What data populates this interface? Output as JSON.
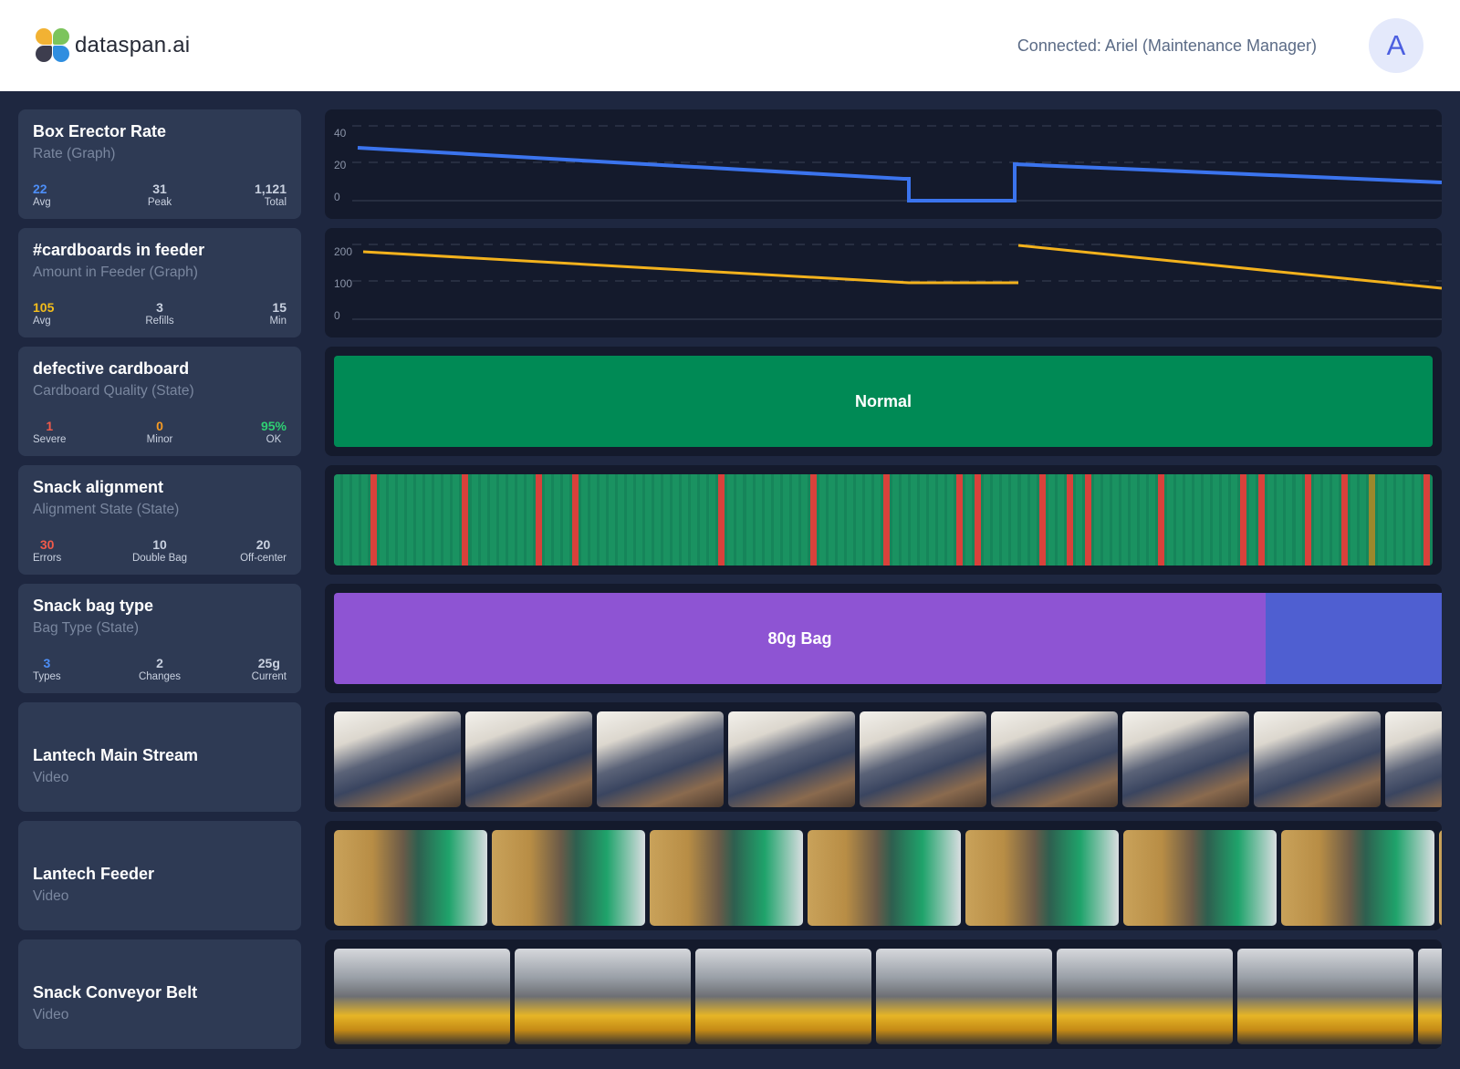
{
  "header": {
    "brand": "dataspan.ai",
    "connection": "Connected: Ariel (Maintenance Manager)",
    "avatar_letter": "A"
  },
  "cards": [
    {
      "title": "Box Erector Rate",
      "subtitle": "Rate (Graph)",
      "stats": [
        {
          "value": "22",
          "label": "Avg",
          "color": "#4d8ef7"
        },
        {
          "value": "31",
          "label": "Peak",
          "color": "#ffffff"
        },
        {
          "value": "1,121",
          "label": "Total",
          "color": "#ffffff"
        }
      ]
    },
    {
      "title": "#cardboards in feeder",
      "subtitle": "Amount in Feeder (Graph)",
      "stats": [
        {
          "value": "105",
          "label": "Avg",
          "color": "#f3bd1b"
        },
        {
          "value": "3",
          "label": "Refills",
          "color": "#ffffff"
        },
        {
          "value": "15",
          "label": "Min",
          "color": "#ffffff"
        }
      ]
    },
    {
      "title": "defective cardboard",
      "subtitle": "Cardboard Quality (State)",
      "stats": [
        {
          "value": "1",
          "label": "Severe",
          "color": "#f05a4a"
        },
        {
          "value": "0",
          "label": "Minor",
          "color": "#f59a23"
        },
        {
          "value": "95%",
          "label": "OK",
          "color": "#2fcf73"
        }
      ]
    },
    {
      "title": "Snack alignment",
      "subtitle": "Alignment State (State)",
      "stats": [
        {
          "value": "30",
          "label": "Errors",
          "color": "#f05a4a"
        },
        {
          "value": "10",
          "label": "Double Bag",
          "color": "#ffffff"
        },
        {
          "value": "20",
          "label": "Off-center",
          "color": "#ffffff"
        }
      ]
    },
    {
      "title": "Snack bag type",
      "subtitle": "Bag Type (State)",
      "stats": [
        {
          "value": "3",
          "label": "Types",
          "color": "#4d8ef7"
        },
        {
          "value": "2",
          "label": "Changes",
          "color": "#ffffff"
        },
        {
          "value": "25g",
          "label": "Current",
          "color": "#ffffff"
        }
      ]
    },
    {
      "title": "Lantech Main Stream",
      "subtitle": "Video",
      "stats": []
    },
    {
      "title": "Lantech Feeder",
      "subtitle": "Video",
      "stats": []
    },
    {
      "title": "Snack Conveyor Belt",
      "subtitle": "Video",
      "stats": []
    }
  ],
  "rate_graph": {
    "yticks": [
      "40",
      "20",
      "0"
    ],
    "line_color": "#3b74ee"
  },
  "feeder_graph": {
    "yticks": [
      "200",
      "100",
      "0"
    ],
    "line_color": "#f3b21d"
  },
  "quality_state": {
    "label": "Normal",
    "color": "#008a55"
  },
  "bag_state": {
    "label": "80g Bag",
    "color": "#8e54d3",
    "next_color": "#4f5fd1",
    "fraction": 0.84
  },
  "alignment_colors": {
    "ok": "#16855a",
    "error": "#d9413b",
    "warn": "#e58a14"
  }
}
